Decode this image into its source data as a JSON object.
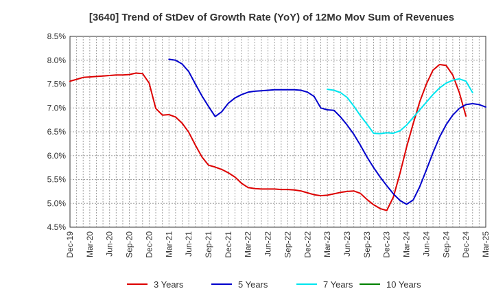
{
  "chart_data": {
    "type": "line",
    "title": "[3640]  Trend of StDev of Growth Rate (YoY) of 12Mo Mov Sum of Revenues",
    "xlabel": "",
    "ylabel": "",
    "ylim": [
      4.5,
      8.5
    ],
    "yticks": [
      "8.5%",
      "8.0%",
      "7.5%",
      "7.0%",
      "6.5%",
      "6.0%",
      "5.5%",
      "5.0%",
      "4.5%"
    ],
    "ytick_values": [
      8.5,
      8.0,
      7.5,
      7.0,
      6.5,
      6.0,
      5.5,
      5.0,
      4.5
    ],
    "x_start": "Dec-19",
    "x_months": 63,
    "xticks": [
      "Dec-19",
      "Mar-20",
      "Jun-20",
      "Sep-20",
      "Dec-20",
      "Mar-21",
      "Jun-21",
      "Sep-21",
      "Dec-21",
      "Mar-22",
      "Jun-22",
      "Sep-22",
      "Dec-22",
      "Mar-23",
      "Jun-23",
      "Sep-23",
      "Dec-23",
      "Mar-24",
      "Jun-24",
      "Sep-24",
      "Dec-24",
      "Mar-25"
    ],
    "grid": true,
    "legend_position": "bottom",
    "series": [
      {
        "name": "3 Years",
        "color": "#dd0000",
        "start_index": 0,
        "values": [
          7.56,
          7.6,
          7.64,
          7.65,
          7.66,
          7.67,
          7.68,
          7.69,
          7.69,
          7.7,
          7.73,
          7.72,
          7.52,
          6.99,
          6.85,
          6.86,
          6.81,
          6.68,
          6.49,
          6.22,
          5.97,
          5.8,
          5.76,
          5.71,
          5.64,
          5.55,
          5.42,
          5.33,
          5.31,
          5.3,
          5.3,
          5.3,
          5.29,
          5.29,
          5.28,
          5.26,
          5.22,
          5.18,
          5.16,
          5.17,
          5.2,
          5.23,
          5.25,
          5.26,
          5.21,
          5.08,
          4.97,
          4.89,
          4.85,
          5.13,
          5.63,
          6.18,
          6.67,
          7.13,
          7.5,
          7.79,
          7.91,
          7.89,
          7.69,
          7.32,
          6.83
        ]
      },
      {
        "name": "5 Years",
        "color": "#0000cc",
        "start_index": 15,
        "values": [
          8.02,
          8.0,
          7.92,
          7.76,
          7.5,
          7.25,
          7.03,
          6.82,
          6.92,
          7.1,
          7.21,
          7.28,
          7.33,
          7.35,
          7.36,
          7.37,
          7.38,
          7.38,
          7.38,
          7.38,
          7.37,
          7.33,
          7.24,
          7.0,
          6.96,
          6.95,
          6.81,
          6.64,
          6.45,
          6.22,
          5.97,
          5.75,
          5.55,
          5.37,
          5.2,
          5.06,
          4.98,
          5.07,
          5.35,
          5.7,
          6.06,
          6.39,
          6.65,
          6.85,
          6.99,
          7.07,
          7.09,
          7.07,
          7.02
        ]
      },
      {
        "name": "7 Years",
        "color": "#00e5ee",
        "start_index": 39,
        "values": [
          7.39,
          7.37,
          7.32,
          7.22,
          7.04,
          6.84,
          6.66,
          6.47,
          6.46,
          6.48,
          6.47,
          6.52,
          6.64,
          6.8,
          6.96,
          7.12,
          7.28,
          7.42,
          7.52,
          7.58,
          7.61,
          7.56,
          7.32
        ]
      },
      {
        "name": "10 Years",
        "color": "#008000",
        "start_index": 0,
        "values": []
      }
    ]
  }
}
